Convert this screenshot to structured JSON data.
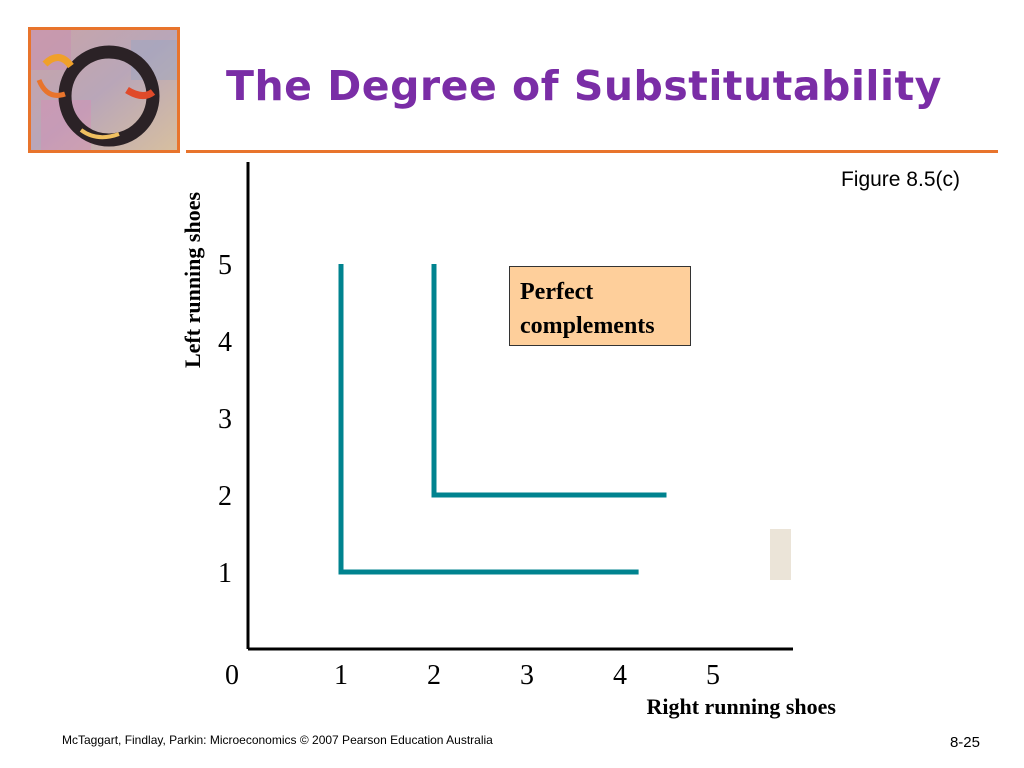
{
  "slide": {
    "title": "The Degree of Substitutability",
    "figure_label": "Figure 8.5(c)",
    "footer": "McTaggart, Findlay, Parkin: Microeconomics © 2007 Pearson Education Australia",
    "page_number": "8-25"
  },
  "colors": {
    "title": "#7a2da6",
    "accent_rule": "#e8742c",
    "curve": "#00838f",
    "callout_fill": "#fecf9b"
  },
  "chart_data": {
    "type": "line",
    "title": "",
    "xlabel": "Right running shoes",
    "ylabel": "Left running shoes",
    "origin_label": "0",
    "x_ticks": [
      "1",
      "2",
      "3",
      "4",
      "5"
    ],
    "y_ticks": [
      "1",
      "2",
      "3",
      "4",
      "5"
    ],
    "xlim": [
      0,
      5.8
    ],
    "ylim": [
      0,
      6.3
    ],
    "annotation": {
      "line1": "Perfect",
      "line2": "complements"
    },
    "series": [
      {
        "points": [
          [
            1,
            5
          ],
          [
            1,
            1
          ],
          [
            4.2,
            1
          ]
        ]
      },
      {
        "points": [
          [
            2,
            5
          ],
          [
            2,
            2
          ],
          [
            4.5,
            2
          ]
        ]
      }
    ],
    "grid": false,
    "legend": "none"
  }
}
